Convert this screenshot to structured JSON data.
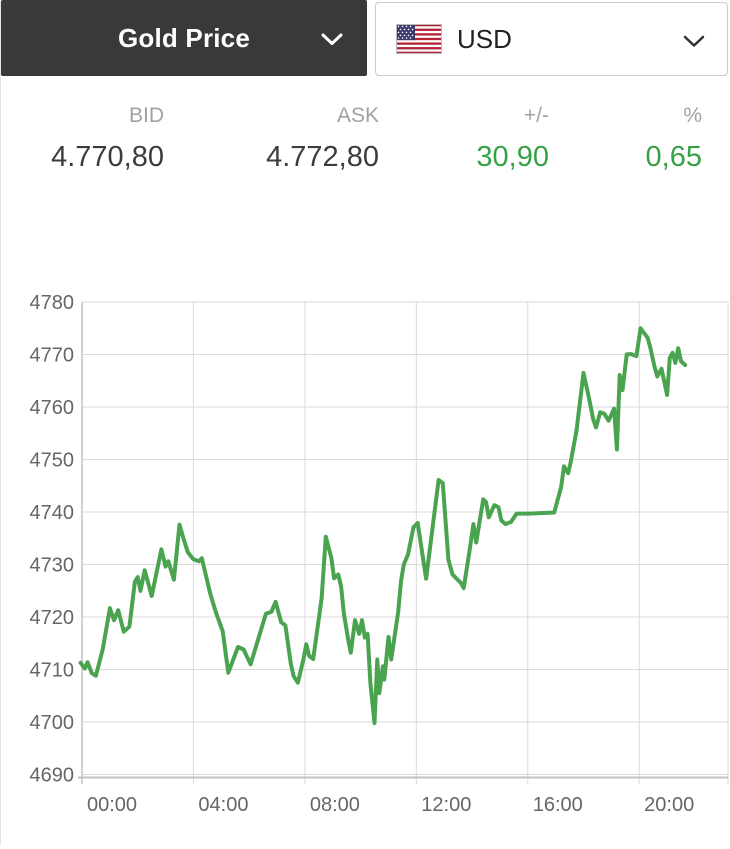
{
  "header": {
    "instrument": "Gold Price",
    "currency": "USD",
    "flag_icon": "us-flag"
  },
  "quote": {
    "bid": {
      "label": "BID",
      "value": "4.770,80"
    },
    "ask": {
      "label": "ASK",
      "value": "4.772,80"
    },
    "change": {
      "label": "+/-",
      "value": "30,90",
      "positive": true
    },
    "change_percent": {
      "label": "%",
      "value": "0,65",
      "positive": true
    }
  },
  "colors": {
    "positive": "#38a047",
    "header_bg": "#39393b",
    "line": "#4aa44f",
    "grid": "#dadada",
    "axis": "#c2c2c2",
    "axis_text": "#666666",
    "label_gray": "#a2a2a2",
    "value_dark": "#3c3c3c"
  },
  "chart_data": {
    "type": "line",
    "y_min": 4690,
    "y_max": 4780,
    "y_step": 10,
    "y_tick_labels": [
      "4690",
      "4700",
      "4710",
      "4720",
      "4730",
      "4740",
      "4750",
      "4760",
      "4770",
      "4780"
    ],
    "x_ticks": [
      {
        "h": 0,
        "label": "00:00"
      },
      {
        "h": 4,
        "label": "04:00"
      },
      {
        "h": 8,
        "label": "08:00"
      },
      {
        "h": 12,
        "label": "12:00"
      },
      {
        "h": 16,
        "label": "16:00"
      },
      {
        "h": 20,
        "label": "20:00"
      }
    ],
    "grid": true,
    "legend": "none",
    "line_color": "#4aa44f",
    "series": [
      {
        "name": "Gold Price USD",
        "points": [
          [
            -0.05,
            4711.3
          ],
          [
            0.1,
            4710.2
          ],
          [
            0.2,
            4711.4
          ],
          [
            0.35,
            4709.3
          ],
          [
            0.5,
            4708.8
          ],
          [
            0.75,
            4714.0
          ],
          [
            1.0,
            4721.7
          ],
          [
            1.15,
            4719.4
          ],
          [
            1.3,
            4721.3
          ],
          [
            1.5,
            4717.2
          ],
          [
            1.7,
            4718.2
          ],
          [
            1.9,
            4726.7
          ],
          [
            2.0,
            4727.6
          ],
          [
            2.1,
            4725.0
          ],
          [
            2.25,
            4728.9
          ],
          [
            2.5,
            4724.0
          ],
          [
            2.85,
            4732.9
          ],
          [
            3.0,
            4729.6
          ],
          [
            3.1,
            4730.6
          ],
          [
            3.3,
            4727.1
          ],
          [
            3.5,
            4737.6
          ],
          [
            3.65,
            4734.8
          ],
          [
            3.8,
            4732.3
          ],
          [
            4.0,
            4731.0
          ],
          [
            4.2,
            4730.6
          ],
          [
            4.3,
            4731.2
          ],
          [
            4.6,
            4724.5
          ],
          [
            4.8,
            4721.0
          ],
          [
            5.05,
            4717.3
          ],
          [
            5.25,
            4709.4
          ],
          [
            5.6,
            4714.3
          ],
          [
            5.8,
            4713.8
          ],
          [
            6.05,
            4711.0
          ],
          [
            6.6,
            4720.6
          ],
          [
            6.8,
            4721.0
          ],
          [
            6.95,
            4722.9
          ],
          [
            7.15,
            4719.0
          ],
          [
            7.3,
            4718.4
          ],
          [
            7.5,
            4711.0
          ],
          [
            7.6,
            4708.7
          ],
          [
            7.75,
            4707.5
          ],
          [
            7.95,
            4712.0
          ],
          [
            8.05,
            4714.8
          ],
          [
            8.15,
            4712.6
          ],
          [
            8.3,
            4712.0
          ],
          [
            8.6,
            4723.5
          ],
          [
            8.75,
            4735.3
          ],
          [
            8.95,
            4731.3
          ],
          [
            9.05,
            4727.4
          ],
          [
            9.2,
            4728.1
          ],
          [
            9.3,
            4725.8
          ],
          [
            9.4,
            4720.6
          ],
          [
            9.55,
            4715.8
          ],
          [
            9.65,
            4713.2
          ],
          [
            9.8,
            4719.4
          ],
          [
            9.95,
            4716.8
          ],
          [
            10.05,
            4719.4
          ],
          [
            10.15,
            4716.1
          ],
          [
            10.25,
            4716.8
          ],
          [
            10.35,
            4707.4
          ],
          [
            10.5,
            4699.8
          ],
          [
            10.6,
            4711.9
          ],
          [
            10.67,
            4705.5
          ],
          [
            10.8,
            4710.6
          ],
          [
            10.85,
            4708.1
          ],
          [
            11.0,
            4716.2
          ],
          [
            11.1,
            4711.9
          ],
          [
            11.35,
            4721.0
          ],
          [
            11.45,
            4726.8
          ],
          [
            11.55,
            4730.0
          ],
          [
            11.7,
            4731.9
          ],
          [
            11.9,
            4737.1
          ],
          [
            12.05,
            4737.9
          ],
          [
            12.35,
            4727.3
          ],
          [
            12.8,
            4746.1
          ],
          [
            12.95,
            4745.5
          ],
          [
            13.15,
            4730.9
          ],
          [
            13.3,
            4728.1
          ],
          [
            13.6,
            4726.5
          ],
          [
            13.7,
            4725.5
          ],
          [
            13.9,
            4732.3
          ],
          [
            14.05,
            4737.7
          ],
          [
            14.15,
            4734.2
          ],
          [
            14.4,
            4742.4
          ],
          [
            14.5,
            4741.9
          ],
          [
            14.6,
            4739.0
          ],
          [
            14.8,
            4741.3
          ],
          [
            14.95,
            4740.9
          ],
          [
            15.05,
            4738.4
          ],
          [
            15.2,
            4737.7
          ],
          [
            15.4,
            4738.1
          ],
          [
            15.6,
            4739.7
          ],
          [
            16.05,
            4739.7
          ],
          [
            16.95,
            4739.9
          ],
          [
            17.2,
            4744.8
          ],
          [
            17.3,
            4748.7
          ],
          [
            17.45,
            4747.4
          ],
          [
            17.55,
            4749.7
          ],
          [
            17.75,
            4755.5
          ],
          [
            18.0,
            4766.5
          ],
          [
            18.2,
            4761.6
          ],
          [
            18.35,
            4757.7
          ],
          [
            18.45,
            4756.1
          ],
          [
            18.6,
            4759.0
          ],
          [
            18.75,
            4758.7
          ],
          [
            18.9,
            4757.4
          ],
          [
            19.1,
            4759.7
          ],
          [
            19.2,
            4751.9
          ],
          [
            19.3,
            4766.1
          ],
          [
            19.4,
            4763.2
          ],
          [
            19.55,
            4770.0
          ],
          [
            19.7,
            4770.1
          ],
          [
            19.9,
            4769.7
          ],
          [
            20.05,
            4775.0
          ],
          [
            20.2,
            4773.9
          ],
          [
            20.3,
            4773.2
          ],
          [
            20.4,
            4771.3
          ],
          [
            20.55,
            4767.7
          ],
          [
            20.65,
            4765.8
          ],
          [
            20.8,
            4767.3
          ],
          [
            20.9,
            4764.8
          ],
          [
            21.0,
            4762.3
          ],
          [
            21.1,
            4769.4
          ],
          [
            21.2,
            4770.3
          ],
          [
            21.3,
            4768.4
          ],
          [
            21.4,
            4771.2
          ],
          [
            21.5,
            4768.7
          ],
          [
            21.65,
            4768.0
          ]
        ]
      }
    ]
  }
}
